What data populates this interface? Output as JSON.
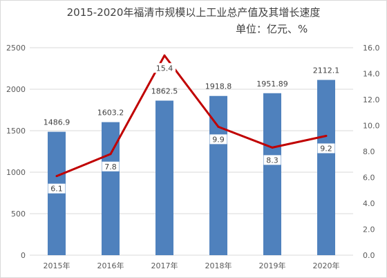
{
  "chart_data": {
    "type": "bar+line",
    "title": "2015-2020年福清市规模以上工业总产值及其增长速度",
    "subtitle": "单位：亿元、%",
    "categories": [
      "2015年",
      "2016年",
      "2017年",
      "2018年",
      "2019年",
      "2020年"
    ],
    "bar_series": {
      "values": [
        1486.9,
        1603.2,
        1862.5,
        1918.8,
        1951.89,
        2112.1
      ],
      "labels": [
        "1486.9",
        "1603.2",
        "1862.5",
        "1918.8",
        "1951.89",
        "2112.1"
      ],
      "color": "#4f81bd"
    },
    "line_series": {
      "values": [
        6.1,
        7.8,
        15.4,
        9.9,
        8.3,
        9.2
      ],
      "labels": [
        "6.1",
        "7.8",
        "15.4",
        "9.9",
        "8.3",
        "9.2"
      ],
      "color": "#c00000"
    },
    "left_axis": {
      "ylim": [
        0,
        2500
      ],
      "ticks": [
        "0",
        "500",
        "1000",
        "1500",
        "2000",
        "2500"
      ]
    },
    "right_axis": {
      "ylim": [
        0,
        16
      ],
      "ticks": [
        "0.0",
        "2.0",
        "4.0",
        "6.0",
        "8.0",
        "10.0",
        "12.0",
        "14.0",
        "16.0"
      ]
    },
    "grid": true,
    "legend": "none"
  }
}
